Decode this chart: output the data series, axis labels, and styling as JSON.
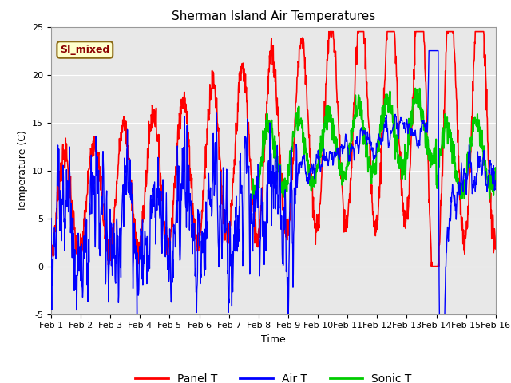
{
  "title": "Sherman Island Air Temperatures",
  "xlabel": "Time",
  "ylabel": "Temperature (C)",
  "xlim": [
    0,
    15
  ],
  "ylim": [
    -5,
    25
  ],
  "xtick_positions": [
    0,
    1,
    2,
    3,
    4,
    5,
    6,
    7,
    8,
    9,
    10,
    11,
    12,
    13,
    14,
    15
  ],
  "xtick_labels": [
    "Feb 1",
    "Feb 2",
    "Feb 3",
    "Feb 4",
    "Feb 5",
    "Feb 6",
    "Feb 7",
    "Feb 8",
    "Feb 9",
    "Feb 10",
    "Feb 11",
    "Feb 12",
    "Feb 13",
    "Feb 14",
    "Feb 15",
    "Feb 16"
  ],
  "ytick_positions": [
    -5,
    0,
    5,
    10,
    15,
    20,
    25
  ],
  "annotation_text": "SI_mixed",
  "bg_color": "#e8e8e8",
  "panel_color": "#ff0000",
  "air_color": "#0000ff",
  "sonic_color": "#00cc00",
  "legend_items": [
    "Panel T",
    "Air T",
    "Sonic T"
  ],
  "linewidth_panel": 1.2,
  "linewidth_air": 1.0,
  "linewidth_sonic": 1.5,
  "sonic_start_day": 6.8,
  "title_fontsize": 11,
  "axis_label_fontsize": 9,
  "tick_fontsize": 8,
  "legend_fontsize": 10,
  "figwidth": 6.4,
  "figheight": 4.8,
  "dpi": 100
}
